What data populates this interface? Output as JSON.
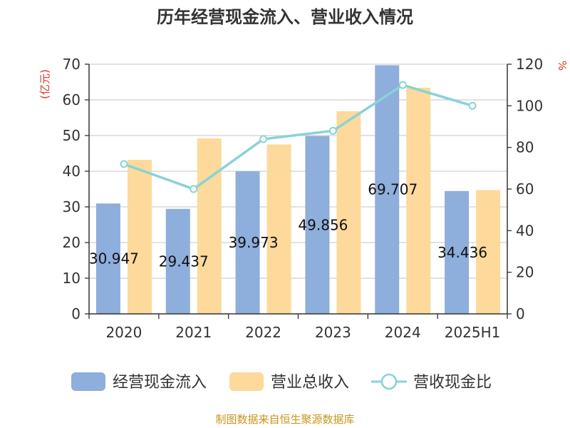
{
  "chart_data": {
    "type": "bar",
    "title": "历年经营现金流入、营业收入情况",
    "categories": [
      "2020",
      "2021",
      "2022",
      "2023",
      "2024",
      "2025H1"
    ],
    "y_left": {
      "unit": "(亿元)",
      "min": 0,
      "max": 70,
      "step": 10
    },
    "y_right": {
      "unit": "%",
      "min": 0,
      "max": 120,
      "step": 20
    },
    "series": [
      {
        "name": "经营现金流入",
        "kind": "bar",
        "axis": "left",
        "color": "#8eaedb",
        "values": [
          30.947,
          29.437,
          39.973,
          49.856,
          69.707,
          34.436
        ],
        "labels": [
          "30.947",
          "29.437",
          "39.973",
          "49.856",
          "69.707",
          "34.436"
        ]
      },
      {
        "name": "营业总收入",
        "kind": "bar",
        "axis": "left",
        "color": "#fdd99b",
        "values": [
          43.2,
          49.2,
          47.5,
          56.8,
          63.4,
          34.7
        ]
      },
      {
        "name": "营收现金比",
        "kind": "line",
        "axis": "right",
        "color": "#88d3d6",
        "values": [
          72,
          60,
          84,
          88,
          110,
          100
        ]
      }
    ],
    "legend_position": "bottom",
    "grid": true,
    "source": "制图数据来自恒生聚源数据库"
  }
}
